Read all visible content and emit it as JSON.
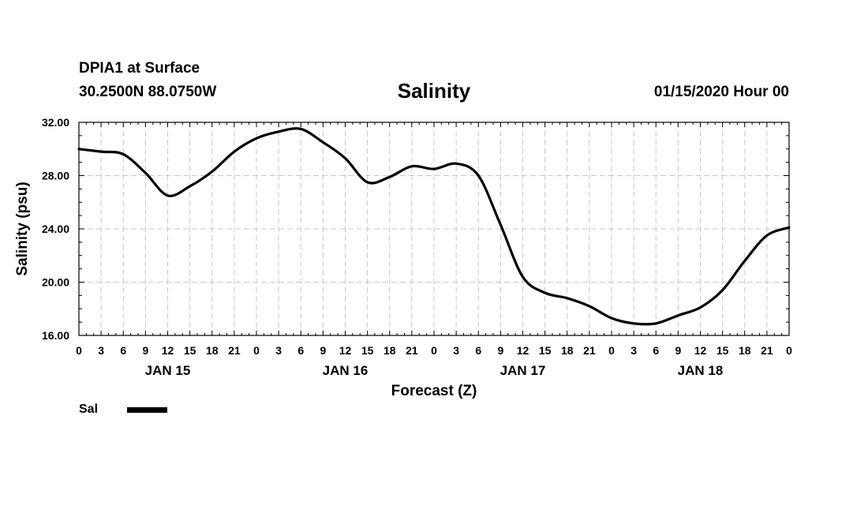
{
  "header": {
    "station": "DPIA1 at Surface",
    "coords": "30.2500N 88.0750W",
    "title": "Salinity",
    "timestamp": "01/15/2020 Hour 00"
  },
  "legend": {
    "label": "Sal",
    "color": "#000000"
  },
  "chart_data": {
    "type": "line",
    "title": "Salinity",
    "xlabel": "Forecast (Z)",
    "ylabel": "Salinity (psu)",
    "ylim": [
      16,
      32
    ],
    "xlim": [
      0,
      96
    ],
    "y_ticks": [
      "16.00",
      "20.00",
      "24.00",
      "28.00",
      "32.00"
    ],
    "x_tick_labels": [
      "0",
      "3",
      "6",
      "9",
      "12",
      "15",
      "18",
      "21",
      "0",
      "3",
      "6",
      "9",
      "12",
      "15",
      "18",
      "21",
      "0",
      "3",
      "6",
      "9",
      "12",
      "15",
      "18",
      "21",
      "0",
      "3",
      "6",
      "9",
      "12",
      "15",
      "18",
      "21",
      "0"
    ],
    "day_labels": [
      {
        "hour": 12,
        "label": "JAN 15"
      },
      {
        "hour": 36,
        "label": "JAN 16"
      },
      {
        "hour": 60,
        "label": "JAN 17"
      },
      {
        "hour": 84,
        "label": "JAN 18"
      }
    ],
    "grid": true,
    "series": [
      {
        "name": "Sal",
        "color": "#000000",
        "x": [
          0,
          3,
          6,
          9,
          12,
          15,
          18,
          21,
          24,
          27,
          30,
          33,
          36,
          39,
          42,
          45,
          48,
          51,
          54,
          57,
          60,
          63,
          66,
          69,
          72,
          75,
          78,
          81,
          84,
          87,
          90,
          93,
          96
        ],
        "y": [
          30.0,
          29.8,
          29.6,
          28.2,
          26.5,
          27.2,
          28.3,
          29.8,
          30.8,
          31.3,
          31.5,
          30.5,
          29.3,
          27.5,
          27.9,
          28.7,
          28.5,
          28.9,
          28.0,
          24.3,
          20.4,
          19.2,
          18.8,
          18.2,
          17.3,
          16.9,
          16.9,
          17.5,
          18.1,
          19.4,
          21.6,
          23.5,
          24.1
        ]
      }
    ]
  }
}
